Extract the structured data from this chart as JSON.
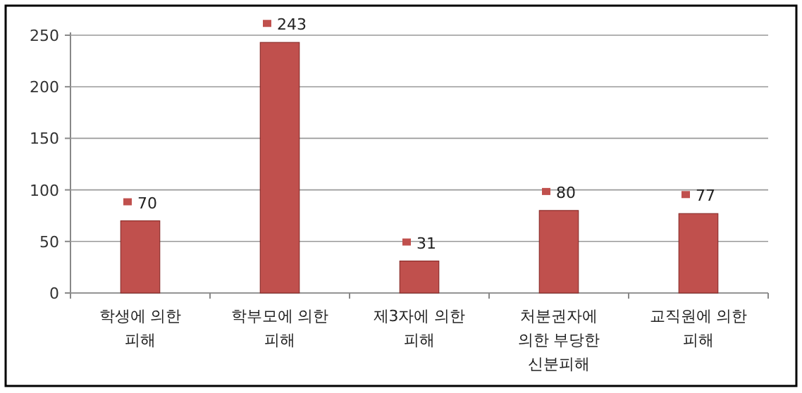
{
  "chart_data": {
    "type": "bar",
    "categories": [
      "학생에 의한 피해",
      "학부모에 의한 피해",
      "제3자에 의한 피해",
      "처분권자에 의한 부당한 신분피해",
      "교직원에 의한 피해"
    ],
    "values": [
      70,
      243,
      31,
      80,
      77
    ],
    "color": "#c0504d",
    "ylim": [
      0,
      250
    ],
    "yticks": [
      0,
      50,
      100,
      150,
      200,
      250
    ],
    "grid": "y",
    "data_labels": true
  }
}
